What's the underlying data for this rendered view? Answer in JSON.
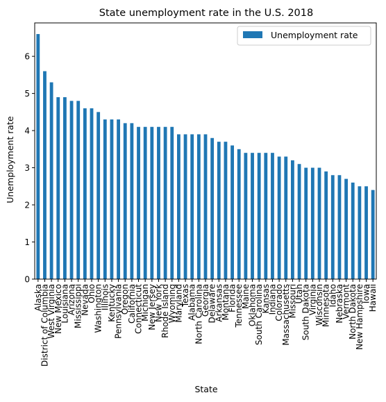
{
  "chart_data": {
    "type": "bar",
    "title": "State unemployment rate in the U.S. 2018",
    "xlabel": "State",
    "ylabel": "Unemployment rate",
    "ylim": [
      0,
      6.9
    ],
    "yticks": [
      0,
      1,
      2,
      3,
      4,
      5,
      6
    ],
    "grid": false,
    "legend_position": "top-right",
    "bar_color": "#1f77b4",
    "categories": [
      "Alaska",
      "District of Columbia",
      "West Virginia",
      "New Mexico",
      "Louisiana",
      "Arizona",
      "Mississippi",
      "Nevada",
      "Ohio",
      "Washington",
      "Illinois",
      "Kentucky",
      "Pennsylvania",
      "Oregon",
      "California",
      "Connecticut",
      "Michigan",
      "New Jersey",
      "New York",
      "Rhode Island",
      "Wyoming",
      "Maryland",
      "Texas",
      "Alabama",
      "North Carolina",
      "Georgia",
      "Delaware",
      "Arkansas",
      "Montana",
      "Florida",
      "Tennessee",
      "Maine",
      "Oklahoma",
      "South Carolina",
      "Kansas",
      "Indiana",
      "Colorado",
      "Massachusetts",
      "Missouri",
      "Utah",
      "South Dakota",
      "Virginia",
      "Wisconsin",
      "Minnesota",
      "Idaho",
      "Nebraska",
      "Vermont",
      "North Dakota",
      "New Hampshire",
      "Iowa",
      "Hawaii"
    ],
    "series": [
      {
        "name": "Unemployment rate",
        "values": [
          6.6,
          5.6,
          5.3,
          4.9,
          4.9,
          4.8,
          4.8,
          4.6,
          4.6,
          4.5,
          4.3,
          4.3,
          4.3,
          4.2,
          4.2,
          4.1,
          4.1,
          4.1,
          4.1,
          4.1,
          4.1,
          3.9,
          3.9,
          3.9,
          3.9,
          3.9,
          3.8,
          3.7,
          3.7,
          3.6,
          3.5,
          3.4,
          3.4,
          3.4,
          3.4,
          3.4,
          3.3,
          3.3,
          3.2,
          3.1,
          3.0,
          3.0,
          3.0,
          2.9,
          2.8,
          2.8,
          2.7,
          2.6,
          2.5,
          2.5,
          2.4
        ]
      }
    ]
  }
}
